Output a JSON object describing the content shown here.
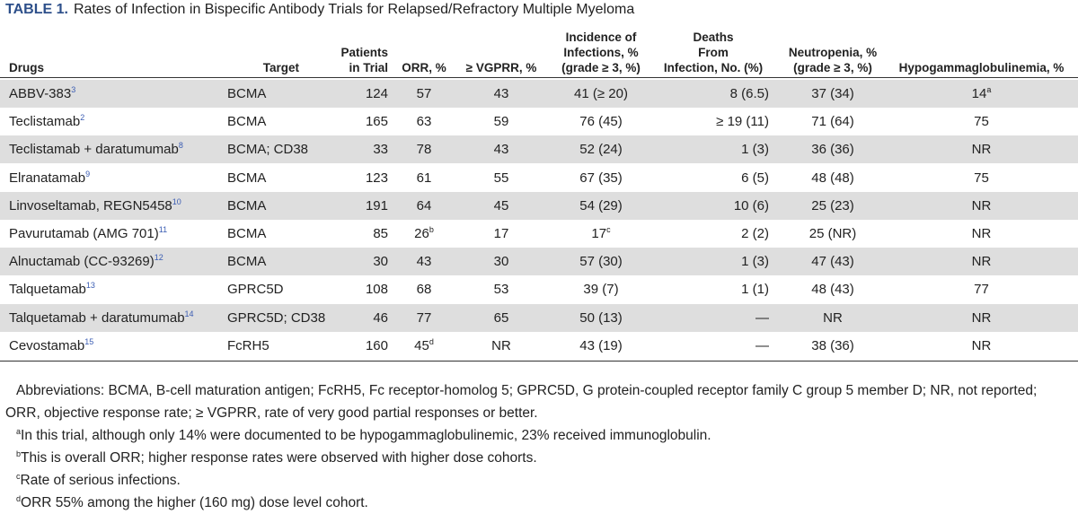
{
  "header": {
    "label": "TABLE 1.",
    "title": "Rates of Infection in Bispecific Antibody Trials for Relapsed/Refractory Multiple Myeloma"
  },
  "table": {
    "columns": [
      "Drugs",
      "Target",
      "Patients\nin Trial",
      "ORR, %",
      "≥ VGPRR, %",
      "Incidence of\nInfections, %\n(grade ≥ 3, %)",
      "Deaths\nFrom\nInfection, No. (%)",
      "Neutropenia, %\n(grade ≥ 3, %)",
      "Hypogammaglobulinemia, %"
    ],
    "rows": [
      [
        {
          "text": "ABBV-383",
          "sup": "3"
        },
        "BCMA",
        "124",
        "57",
        "43",
        "41 (≥ 20)",
        "8 (6.5)",
        "37 (34)",
        {
          "text": "14",
          "sup": "a"
        }
      ],
      [
        {
          "text": "Teclistamab",
          "sup": "2"
        },
        "BCMA",
        "165",
        "63",
        "59",
        "76 (45)",
        "≥ 19 (11)",
        "71 (64)",
        "75"
      ],
      [
        {
          "text": "Teclistamab + daratumumab",
          "sup": "8"
        },
        "BCMA; CD38",
        "33",
        "78",
        "43",
        "52 (24)",
        "1 (3)",
        "36 (36)",
        "NR"
      ],
      [
        {
          "text": "Elranatamab",
          "sup": "9"
        },
        "BCMA",
        "123",
        "61",
        "55",
        "67 (35)",
        "6 (5)",
        "48 (48)",
        "75"
      ],
      [
        {
          "text": "Linvoseltamab, REGN5458",
          "sup": "10"
        },
        "BCMA",
        "191",
        "64",
        "45",
        "54 (29)",
        "10 (6)",
        "25 (23)",
        "NR"
      ],
      [
        {
          "text": "Pavurutamab (AMG 701)",
          "sup": "11"
        },
        "BCMA",
        "85",
        {
          "text": "26",
          "sup": "b"
        },
        "17",
        {
          "text": "17",
          "sup": "c"
        },
        "2 (2)",
        "25 (NR)",
        "NR"
      ],
      [
        {
          "text": "Alnuctamab (CC-93269)",
          "sup": "12"
        },
        "BCMA",
        "30",
        "43",
        "30",
        "57 (30)",
        "1 (3)",
        "47 (43)",
        "NR"
      ],
      [
        {
          "text": "Talquetamab",
          "sup": "13"
        },
        "GPRC5D",
        "108",
        "68",
        "53",
        "39 (7)",
        "1 (1)",
        "48 (43)",
        "77"
      ],
      [
        {
          "text": "Talquetamab + daratumumab",
          "sup": "14"
        },
        "GPRC5D; CD38",
        "46",
        "77",
        "65",
        "50 (13)",
        "—",
        "NR",
        "NR"
      ],
      [
        {
          "text": "Cevostamab",
          "sup": "15"
        },
        "FcRH5",
        "160",
        {
          "text": "45",
          "sup": "d"
        },
        "NR",
        "43 (19)",
        "—",
        "38 (36)",
        "NR"
      ]
    ]
  },
  "footnotes": {
    "abbreviations": "Abbreviations: BCMA, B-cell maturation antigen; FcRH5, Fc receptor-homolog 5; GPRC5D, G protein-coupled receptor family C group 5 member D; NR, not reported; ORR, objective response rate; ≥ VGPRR, rate of very good partial responses or better.",
    "notes": [
      {
        "mark": "a",
        "text": "In this trial, although only 14% were documented to be hypogammaglobulinemic, 23% received immunoglobulin."
      },
      {
        "mark": "b",
        "text": "This is overall ORR; higher response rates were observed with higher dose cohorts."
      },
      {
        "mark": "c",
        "text": "Rate of serious infections."
      },
      {
        "mark": "d",
        "text": "ORR 55% among the higher (160 mg) dose level cohort."
      }
    ]
  }
}
